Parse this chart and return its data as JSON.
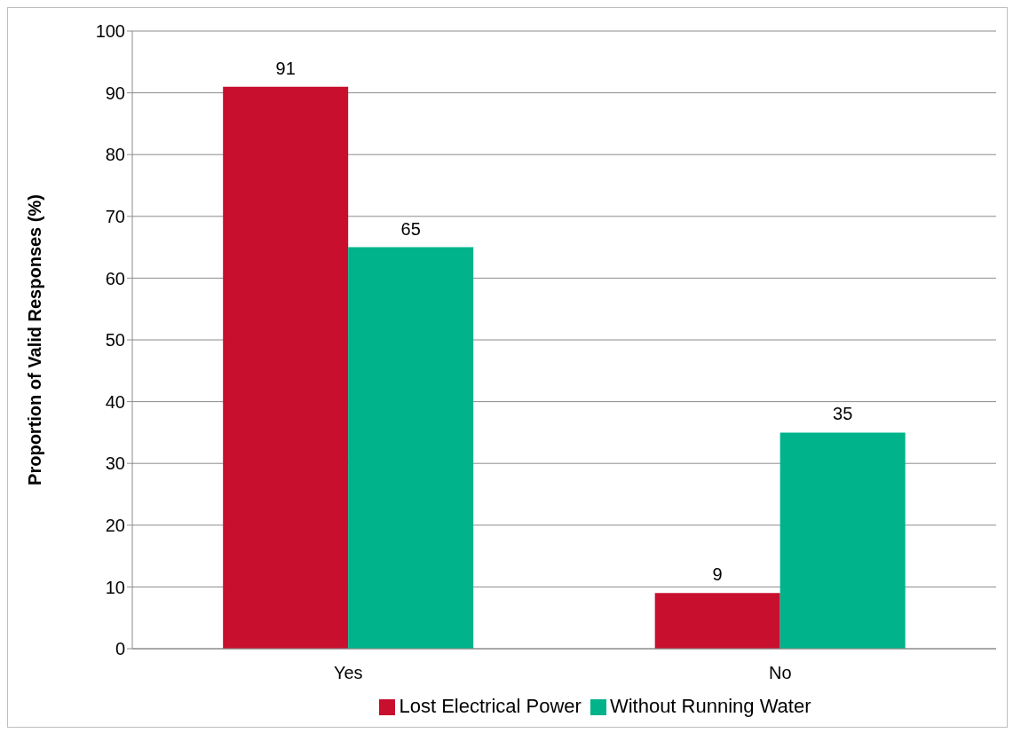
{
  "chart_data": {
    "type": "bar",
    "ylabel": "Proportion of Valid Responses (%)",
    "categories": [
      "Yes",
      "No"
    ],
    "series": [
      {
        "name": "Lost Electrical Power",
        "color": "#c8102e",
        "values": [
          91,
          9
        ]
      },
      {
        "name": "Without Running Water",
        "color": "#00b38a",
        "values": [
          65,
          35
        ]
      }
    ],
    "ylim": [
      0,
      100
    ],
    "yticks": [
      0,
      10,
      20,
      30,
      40,
      50,
      60,
      70,
      80,
      90,
      100
    ],
    "grid": "y",
    "legend": "bottom",
    "data_labels": true
  }
}
